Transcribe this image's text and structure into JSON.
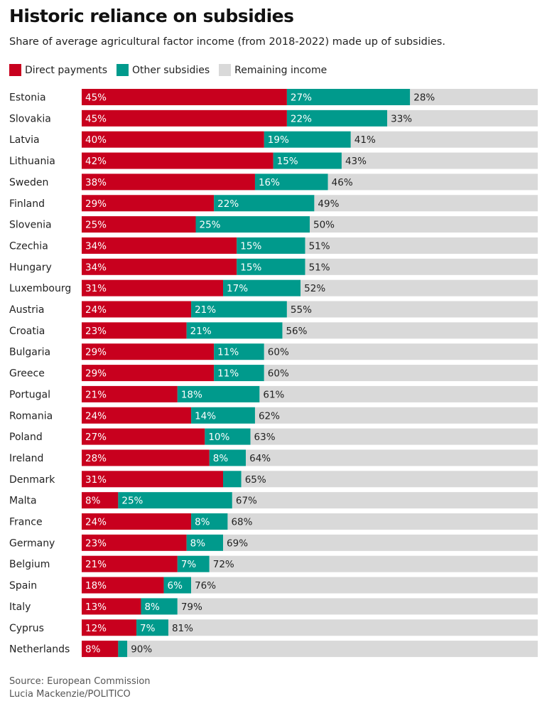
{
  "title": "Historic reliance on subsidies",
  "subtitle": "Share of average agricultural factor income (from 2018-2022) made up of subsidies.",
  "legend": [
    {
      "label": "Direct payments",
      "color": "#c8001e"
    },
    {
      "label": "Other subsidies",
      "color": "#009a8c"
    },
    {
      "label": "Remaining income",
      "color": "#d9d9d9"
    }
  ],
  "footer": {
    "source": "Source: European Commission",
    "credit": "Lucia Mackenzie/POLITICO"
  },
  "chart_data": {
    "type": "bar",
    "orientation": "horizontal",
    "stacked": true,
    "title": "Historic reliance on subsidies",
    "subtitle": "Share of average agricultural factor income (from 2018-2022) made up of subsidies.",
    "xlabel": "",
    "ylabel": "",
    "xlim": [
      0,
      100
    ],
    "grid": false,
    "legend_position": "top-left",
    "categories": [
      "Estonia",
      "Slovakia",
      "Latvia",
      "Lithuania",
      "Sweden",
      "Finland",
      "Slovenia",
      "Czechia",
      "Hungary",
      "Luxembourg",
      "Austria",
      "Croatia",
      "Bulgaria",
      "Greece",
      "Portugal",
      "Romania",
      "Poland",
      "Ireland",
      "Denmark",
      "Malta",
      "France",
      "Germany",
      "Belgium",
      "Spain",
      "Italy",
      "Cyprus",
      "Netherlands"
    ],
    "series": [
      {
        "name": "Direct payments",
        "color": "#c8001e",
        "values": [
          45,
          45,
          40,
          42,
          38,
          29,
          25,
          34,
          34,
          31,
          24,
          23,
          29,
          29,
          21,
          24,
          27,
          28,
          31,
          8,
          24,
          23,
          21,
          18,
          13,
          12,
          8
        ],
        "labels": [
          "45%",
          "45%",
          "40%",
          "42%",
          "38%",
          "29%",
          "25%",
          "34%",
          "34%",
          "31%",
          "24%",
          "23%",
          "29%",
          "29%",
          "21%",
          "24%",
          "27%",
          "28%",
          "31%",
          "8%",
          "24%",
          "23%",
          "21%",
          "18%",
          "13%",
          "12%",
          "8%"
        ]
      },
      {
        "name": "Other subsidies",
        "color": "#009a8c",
        "values": [
          27,
          22,
          19,
          15,
          16,
          22,
          25,
          15,
          15,
          17,
          21,
          21,
          11,
          11,
          18,
          14,
          10,
          8,
          4,
          25,
          8,
          8,
          7,
          6,
          8,
          7,
          2
        ],
        "labels": [
          "27%",
          "22%",
          "19%",
          "15%",
          "16%",
          "22%",
          "25%",
          "15%",
          "15%",
          "17%",
          "21%",
          "21%",
          "11%",
          "11%",
          "18%",
          "14%",
          "10%",
          "8%",
          "",
          "25%",
          "8%",
          "8%",
          "7%",
          "6%",
          "8%",
          "7%",
          ""
        ]
      },
      {
        "name": "Remaining income",
        "color": "#d9d9d9",
        "values": [
          28,
          33,
          41,
          43,
          46,
          49,
          50,
          51,
          51,
          52,
          55,
          56,
          60,
          60,
          61,
          62,
          63,
          64,
          65,
          67,
          68,
          69,
          72,
          76,
          79,
          81,
          90
        ],
        "labels": [
          "28%",
          "33%",
          "41%",
          "43%",
          "46%",
          "49%",
          "50%",
          "51%",
          "51%",
          "52%",
          "55%",
          "56%",
          "60%",
          "60%",
          "61%",
          "62%",
          "63%",
          "64%",
          "65%",
          "67%",
          "68%",
          "69%",
          "72%",
          "76%",
          "79%",
          "81%",
          "90%"
        ]
      }
    ]
  }
}
